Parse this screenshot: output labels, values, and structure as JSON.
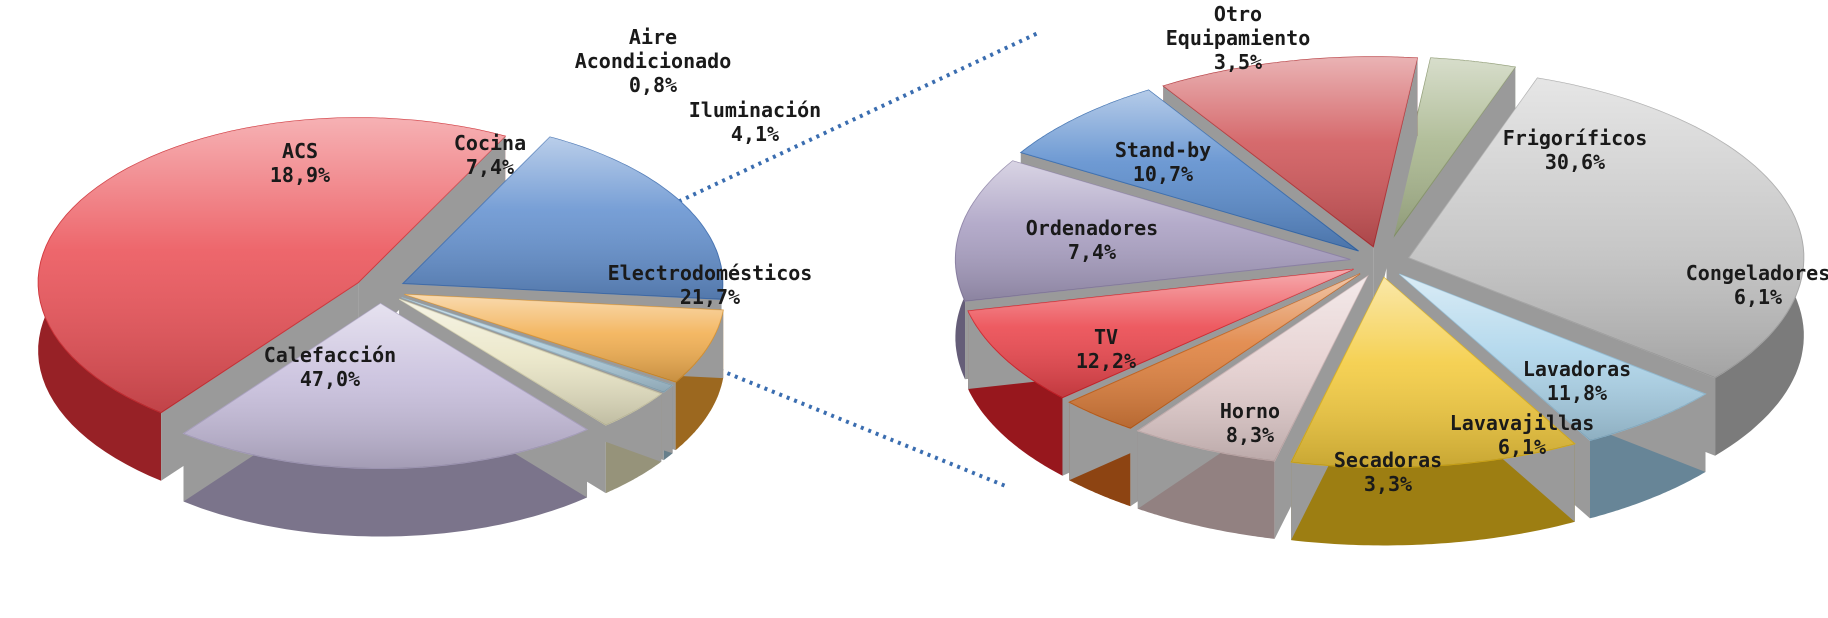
{
  "chart_data": [
    {
      "type": "pie",
      "style": "3d-exploded",
      "title": "",
      "slices": [
        {
          "label": "Calefacción",
          "value": 47.0,
          "value_label": "47,0%",
          "color": "#e8333a"
        },
        {
          "label": "ACS",
          "value": 18.9,
          "value_label": "18,9%",
          "color": "#4a7fc8"
        },
        {
          "label": "Cocina",
          "value": 7.4,
          "value_label": "7,4%",
          "color": "#f0a030"
        },
        {
          "label": "Aire Acondicionado",
          "value": 0.8,
          "value_label": "0,8%",
          "color": "#9fc3d6"
        },
        {
          "label": "Iluminación",
          "value": 4.1,
          "value_label": "4,1%",
          "color": "#e6e2bc"
        },
        {
          "label": "Electrodomésticos",
          "value": 21.7,
          "value_label": "21,7%",
          "color": "#bdb3d6"
        }
      ]
    },
    {
      "type": "pie",
      "style": "3d-exploded",
      "title": "",
      "breakdown_of": "Electrodomésticos",
      "slices": [
        {
          "label": "Frigoríficos",
          "value": 30.6,
          "value_label": "30,6%",
          "color": "#bdbdbd"
        },
        {
          "label": "Congeladores",
          "value": 6.1,
          "value_label": "6,1%",
          "color": "#9fcde8"
        },
        {
          "label": "Lavadoras",
          "value": 11.8,
          "value_label": "11,8%",
          "color": "#f2c21c"
        },
        {
          "label": "Lavavajillas",
          "value": 6.1,
          "value_label": "6,1%",
          "color": "#e0c6c6"
        },
        {
          "label": "Secadoras",
          "value": 3.3,
          "value_label": "3,3%",
          "color": "#d9691b"
        },
        {
          "label": "Horno",
          "value": 8.3,
          "value_label": "8,3%",
          "color": "#e8242c"
        },
        {
          "label": "TV",
          "value": 12.2,
          "value_label": "12,2%",
          "color": "#9b8fb8"
        },
        {
          "label": "Ordenadores",
          "value": 7.4,
          "value_label": "7,4%",
          "color": "#3d78c4"
        },
        {
          "label": "Stand-by",
          "value": 10.7,
          "value_label": "10,7%",
          "color": "#c8383c"
        },
        {
          "label": "Otro Equipamiento",
          "value": 3.5,
          "value_label": "3,5%",
          "color": "#98a878"
        }
      ]
    }
  ],
  "connector": {
    "color": "#3a6db0",
    "style": "dotted"
  }
}
